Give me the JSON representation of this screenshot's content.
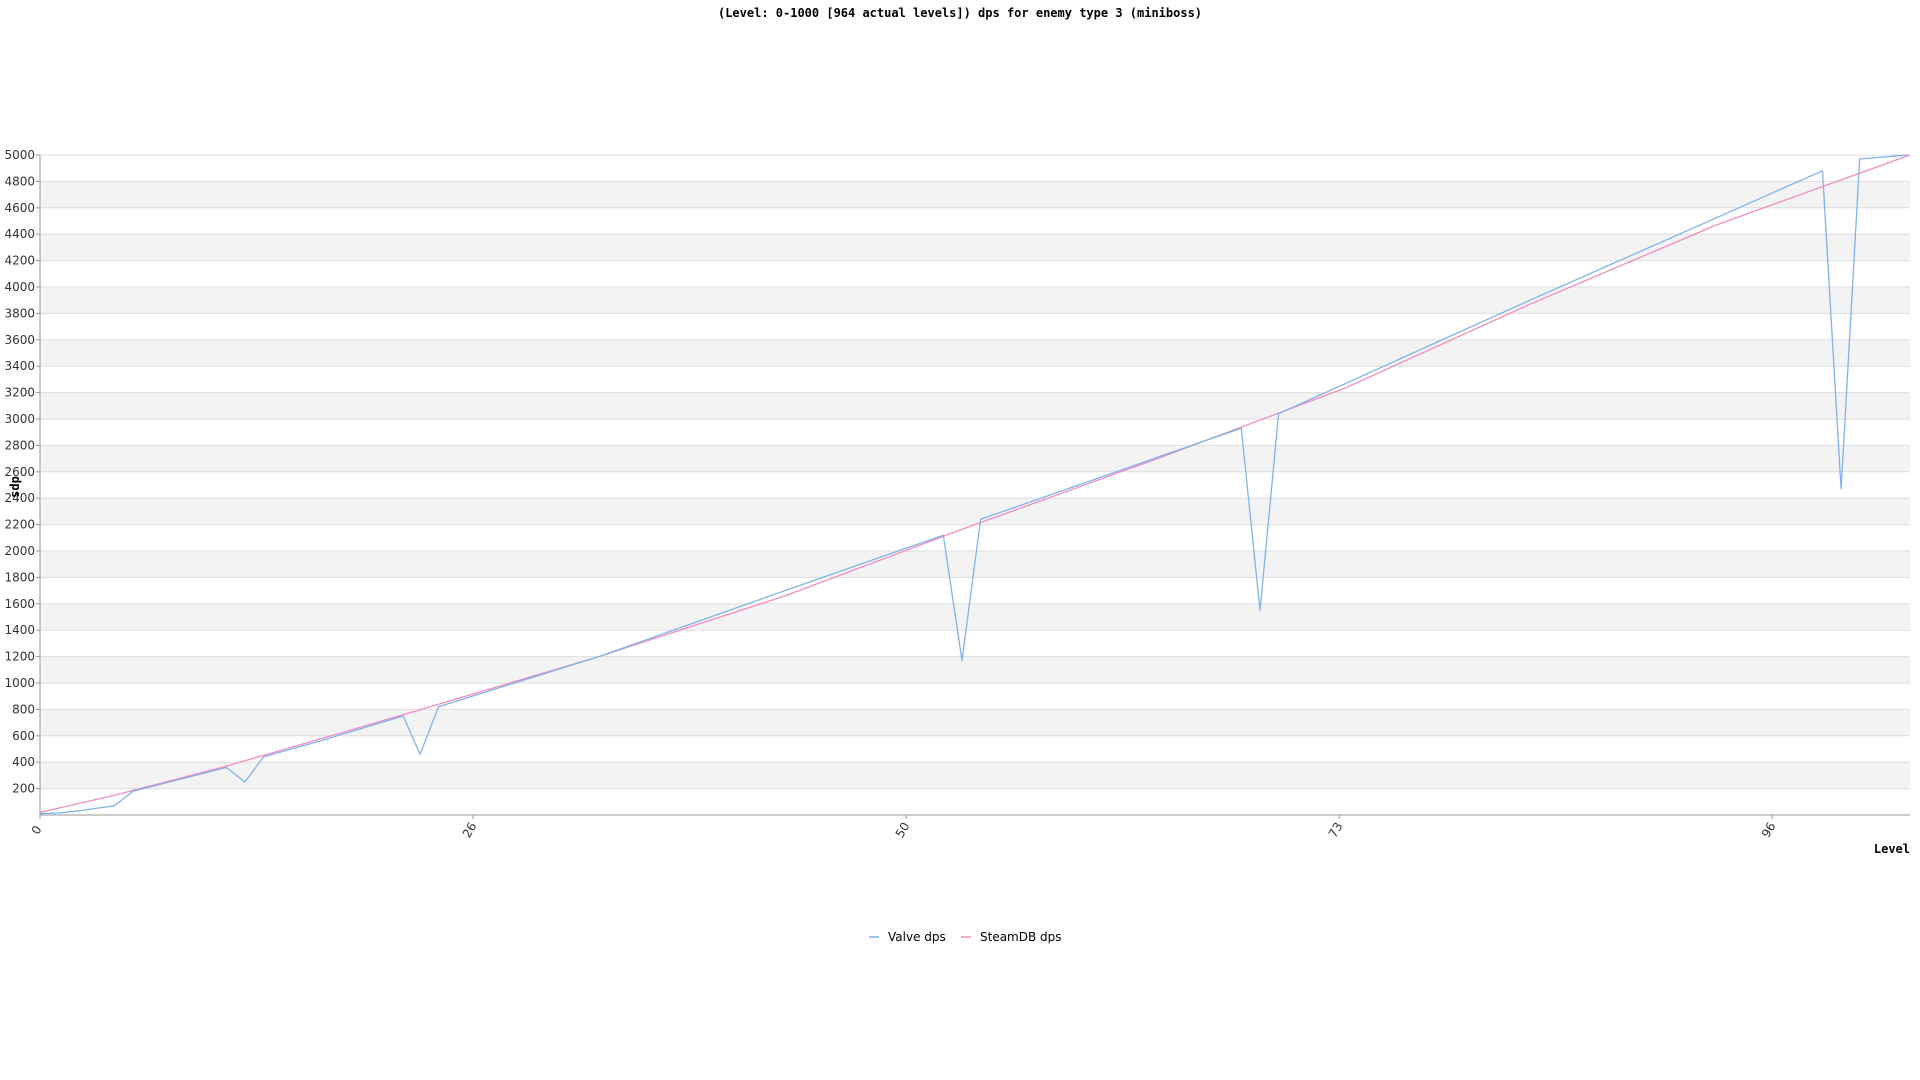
{
  "chart_data": {
    "type": "line",
    "title": "(Level: 0-1000 [964 actual levels]) dps for enemy type 3 (miniboss)",
    "xlabel": "Level",
    "ylabel": "dps",
    "x_tick_labels": [
      "0",
      "26",
      "50",
      "73",
      "96"
    ],
    "x_tick_positions": [
      0,
      23.25,
      46.5,
      69.75,
      93
    ],
    "xlim": [
      0,
      100.4
    ],
    "ylim": [
      0,
      5000
    ],
    "y_ticks": [
      200,
      400,
      600,
      800,
      1000,
      1200,
      1400,
      1600,
      1800,
      2000,
      2200,
      2400,
      2600,
      2800,
      3000,
      3200,
      3400,
      3600,
      3800,
      4000,
      4200,
      4400,
      4600,
      4800,
      5000
    ],
    "grid": true,
    "legend_position": "bottom-center",
    "series": [
      {
        "name": "Valve dps",
        "color": "#7fb3ea",
        "x": [
          0,
          1,
          2,
          3,
          4,
          5,
          10,
          11,
          12,
          15,
          19.5,
          20.4,
          21.4,
          30,
          40,
          48.5,
          49.5,
          50.5,
          60,
          64.5,
          65.5,
          66.5,
          80,
          95.7,
          96.7,
          97.7,
          100.3
        ],
        "y": [
          10,
          15,
          30,
          50,
          70,
          180,
          360,
          250,
          440,
          560,
          750,
          460,
          820,
          1200,
          1700,
          2120,
          1170,
          2240,
          2710,
          2930,
          1550,
          3040,
          3900,
          4880,
          2470,
          4970,
          5000
        ]
      },
      {
        "name": "SteamDB dps",
        "color": "#f28cc0",
        "x": [
          0,
          4,
          10,
          20,
          30,
          40,
          50,
          60,
          70,
          80,
          90,
          100.4
        ],
        "y": [
          20,
          150,
          370,
          780,
          1200,
          1660,
          2190,
          2700,
          3230,
          3870,
          4470,
          5000
        ]
      }
    ]
  }
}
